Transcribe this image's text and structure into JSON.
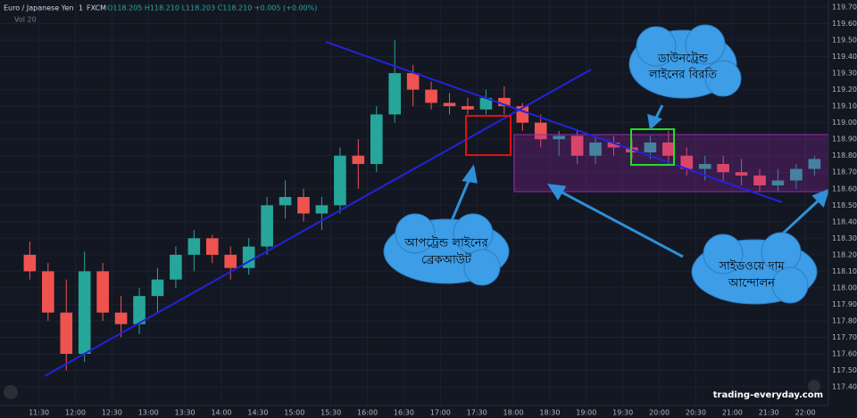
{
  "header": {
    "symbol": "Euro / Japanese Yen",
    "interval": "1",
    "source": "FXCM",
    "ohlc": "O118.205 H118.210 L118.203 C118.210 +0.005 (+0.00%)",
    "volume": "Vol 20"
  },
  "annotations": {
    "downtrend_break": [
      "ডাউনট্রেন্ড",
      "লাইনের বিরতি"
    ],
    "uptrend_breakout": [
      "আপট্রেন্ড লাইনের",
      "ব্রেকআউট"
    ],
    "sideways": [
      "সাইডওয়ে দাম",
      "আন্দোলন"
    ],
    "watermark": "trading-everyday.com"
  },
  "chart_data": {
    "type": "candlestick",
    "x": [
      675,
      690,
      705,
      720,
      735,
      750,
      765,
      780,
      795,
      810,
      825,
      840,
      855,
      870,
      885,
      900,
      915,
      930,
      945,
      960,
      975,
      990,
      1005,
      1020,
      1035,
      1050,
      1065,
      1080,
      1095,
      1110,
      1125,
      1140,
      1155,
      1170,
      1185,
      1200,
      1215,
      1230,
      1245,
      1260,
      1275,
      1290,
      1305,
      1320
    ],
    "open": [
      118.2,
      118.1,
      117.85,
      117.6,
      118.1,
      117.85,
      117.78,
      117.95,
      118.05,
      118.2,
      118.3,
      118.2,
      118.12,
      118.25,
      118.5,
      118.55,
      118.45,
      118.5,
      118.8,
      118.75,
      119.05,
      119.3,
      119.2,
      119.12,
      119.1,
      119.08,
      119.15,
      119.1,
      119.0,
      118.9,
      118.92,
      118.8,
      118.88,
      118.85,
      118.82,
      118.88,
      118.8,
      118.72,
      118.75,
      118.7,
      118.68,
      118.62,
      118.65,
      118.72
    ],
    "high": [
      118.28,
      118.15,
      118.05,
      118.22,
      118.15,
      117.95,
      118.0,
      118.12,
      118.25,
      118.35,
      118.32,
      118.25,
      118.3,
      118.55,
      118.65,
      118.6,
      118.55,
      118.85,
      118.9,
      119.1,
      119.5,
      119.35,
      119.25,
      119.18,
      119.15,
      119.2,
      119.22,
      119.12,
      119.05,
      118.95,
      118.95,
      118.92,
      118.92,
      118.9,
      118.92,
      118.95,
      118.85,
      118.8,
      118.8,
      118.78,
      118.72,
      118.72,
      118.75,
      118.8
    ],
    "low": [
      118.05,
      117.8,
      117.5,
      117.55,
      117.8,
      117.7,
      117.72,
      117.85,
      118.0,
      118.1,
      118.15,
      118.05,
      118.08,
      118.2,
      118.42,
      118.4,
      118.35,
      118.45,
      118.6,
      118.7,
      119.0,
      119.1,
      119.08,
      119.05,
      119.05,
      119.05,
      119.05,
      118.95,
      118.85,
      118.8,
      118.75,
      118.75,
      118.8,
      118.78,
      118.78,
      118.75,
      118.68,
      118.65,
      118.65,
      118.62,
      118.58,
      118.58,
      118.6,
      118.68
    ],
    "close": [
      118.1,
      117.85,
      117.6,
      118.1,
      117.85,
      117.78,
      117.95,
      118.05,
      118.2,
      118.3,
      118.2,
      118.12,
      118.25,
      118.5,
      118.55,
      118.45,
      118.5,
      118.8,
      118.75,
      119.05,
      119.3,
      119.2,
      119.12,
      119.1,
      119.08,
      119.15,
      119.1,
      119.0,
      118.9,
      118.92,
      118.8,
      118.88,
      118.85,
      118.82,
      118.88,
      118.8,
      118.72,
      118.75,
      118.7,
      118.68,
      118.62,
      118.65,
      118.72,
      118.78
    ],
    "up_color": "#26a69a",
    "down_color": "#ef5350",
    "xlim": [
      658,
      1339
    ],
    "ylim": [
      117.287,
      119.743
    ],
    "xticks": [
      {
        "value": 690,
        "label": "11:30"
      },
      {
        "value": 720,
        "label": "12:00"
      },
      {
        "value": 750,
        "label": "12:30"
      },
      {
        "value": 780,
        "label": "13:00"
      },
      {
        "value": 810,
        "label": "13:30"
      },
      {
        "value": 840,
        "label": "14:00"
      },
      {
        "value": 870,
        "label": "14:30"
      },
      {
        "value": 900,
        "label": "15:00"
      },
      {
        "value": 930,
        "label": "15:30"
      },
      {
        "value": 960,
        "label": "16:00"
      },
      {
        "value": 990,
        "label": "16:30"
      },
      {
        "value": 1020,
        "label": "17:00"
      },
      {
        "value": 1050,
        "label": "17:30"
      },
      {
        "value": 1080,
        "label": "18:00"
      },
      {
        "value": 1110,
        "label": "18:30"
      },
      {
        "value": 1140,
        "label": "19:00"
      },
      {
        "value": 1170,
        "label": "19:30"
      },
      {
        "value": 1200,
        "label": "20:00"
      },
      {
        "value": 1230,
        "label": "20:30"
      },
      {
        "value": 1260,
        "label": "21:00"
      },
      {
        "value": 1290,
        "label": "21:30"
      },
      {
        "value": 1320,
        "label": "22:00"
      }
    ],
    "yticks": [
      {
        "value": 117.4,
        "label": "117.400"
      },
      {
        "value": 117.5,
        "label": "117.500"
      },
      {
        "value": 117.6,
        "label": "117.600"
      },
      {
        "value": 117.7,
        "label": "117.700"
      },
      {
        "value": 117.8,
        "label": "117.800"
      },
      {
        "value": 117.9,
        "label": "117.900"
      },
      {
        "value": 118.0,
        "label": "118.000"
      },
      {
        "value": 118.1,
        "label": "118.100"
      },
      {
        "value": 118.2,
        "label": "118.200"
      },
      {
        "value": 118.3,
        "label": "118.300"
      },
      {
        "value": 118.4,
        "label": "118.400"
      },
      {
        "value": 118.5,
        "label": "118.500"
      },
      {
        "value": 118.6,
        "label": "118.600"
      },
      {
        "value": 118.7,
        "label": "118.700"
      },
      {
        "value": 118.8,
        "label": "118.800"
      },
      {
        "value": 118.9,
        "label": "118.900"
      },
      {
        "value": 119.0,
        "label": "119.000"
      },
      {
        "value": 119.1,
        "label": "119.100"
      },
      {
        "value": 119.2,
        "label": "119.200"
      },
      {
        "value": 119.3,
        "label": "119.300"
      },
      {
        "value": 119.4,
        "label": "119.400"
      },
      {
        "value": 119.5,
        "label": "119.500"
      },
      {
        "value": 119.6,
        "label": "119.600"
      },
      {
        "value": 119.7,
        "label": "119.700"
      }
    ],
    "grid": true
  }
}
